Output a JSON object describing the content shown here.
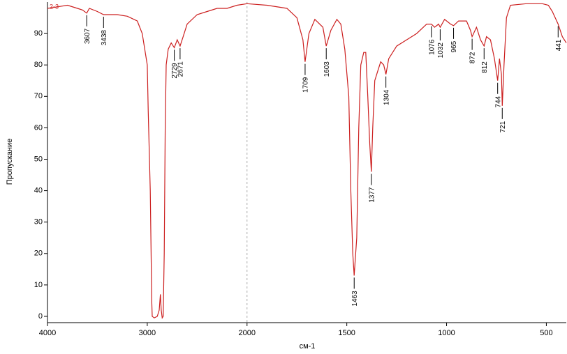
{
  "chart_data": {
    "type": "line",
    "xlabel": "см-1",
    "ylabel": "Пропускание",
    "xlim": [
      4000,
      400
    ],
    "ylim": [
      -2,
      100
    ],
    "xticks": [
      4000,
      3000,
      2000,
      1500,
      1000,
      500
    ],
    "yticks": [
      0,
      10,
      20,
      30,
      40,
      50,
      60,
      70,
      80,
      90
    ],
    "x_scale_break": 2000,
    "x": [
      4000,
      3900,
      3800,
      3700,
      3650,
      3607,
      3580,
      3500,
      3438,
      3400,
      3300,
      3200,
      3100,
      3050,
      3000,
      2990,
      2970,
      2955,
      2950,
      2930,
      2900,
      2880,
      2868,
      2860,
      2850,
      2840,
      2830,
      2820,
      2810,
      2790,
      2760,
      2729,
      2700,
      2671,
      2640,
      2600,
      2500,
      2400,
      2300,
      2200,
      2100,
      2000,
      1900,
      1800,
      1750,
      1720,
      1709,
      1690,
      1660,
      1620,
      1603,
      1580,
      1550,
      1530,
      1510,
      1490,
      1480,
      1470,
      1463,
      1450,
      1440,
      1430,
      1415,
      1405,
      1395,
      1385,
      1377,
      1370,
      1360,
      1345,
      1330,
      1315,
      1304,
      1290,
      1250,
      1200,
      1150,
      1100,
      1076,
      1060,
      1040,
      1032,
      1010,
      980,
      965,
      940,
      900,
      880,
      872,
      850,
      830,
      812,
      800,
      780,
      760,
      744,
      735,
      725,
      721,
      712,
      700,
      680,
      600,
      520,
      490,
      470,
      441,
      420,
      400
    ],
    "series": [
      {
        "name": "2-3",
        "color": "#cc1f1f",
        "values": [
          98,
          98.5,
          99,
          98,
          97.5,
          96.5,
          98,
          97,
          96,
          96,
          96,
          95.5,
          94,
          90,
          80,
          65,
          40,
          5,
          0,
          -0.5,
          0,
          2,
          7,
          2,
          -0.5,
          0,
          20,
          60,
          80,
          85,
          87,
          85.5,
          88,
          86,
          89,
          93,
          96,
          97,
          98,
          98,
          99,
          99.5,
          99,
          98,
          95,
          88,
          81,
          90,
          94.5,
          92,
          86,
          91,
          94.5,
          93,
          85,
          70,
          40,
          20,
          13,
          25,
          60,
          80,
          84,
          84,
          70,
          55,
          46,
          60,
          75,
          78,
          81,
          80,
          77,
          82,
          86,
          88,
          90,
          93,
          93,
          92,
          93,
          92,
          94.5,
          93,
          92.5,
          94,
          94,
          91,
          89,
          92,
          88,
          86,
          89,
          88,
          82,
          75,
          82,
          77,
          67,
          80,
          95,
          99,
          99.5,
          99.5,
          99,
          97,
          93,
          89,
          87
        ]
      }
    ],
    "peaks": [
      3607,
      3438,
      2729,
      2671,
      1709,
      1603,
      1463,
      1377,
      1304,
      1076,
      1032,
      965,
      872,
      812,
      744,
      721,
      441
    ]
  }
}
